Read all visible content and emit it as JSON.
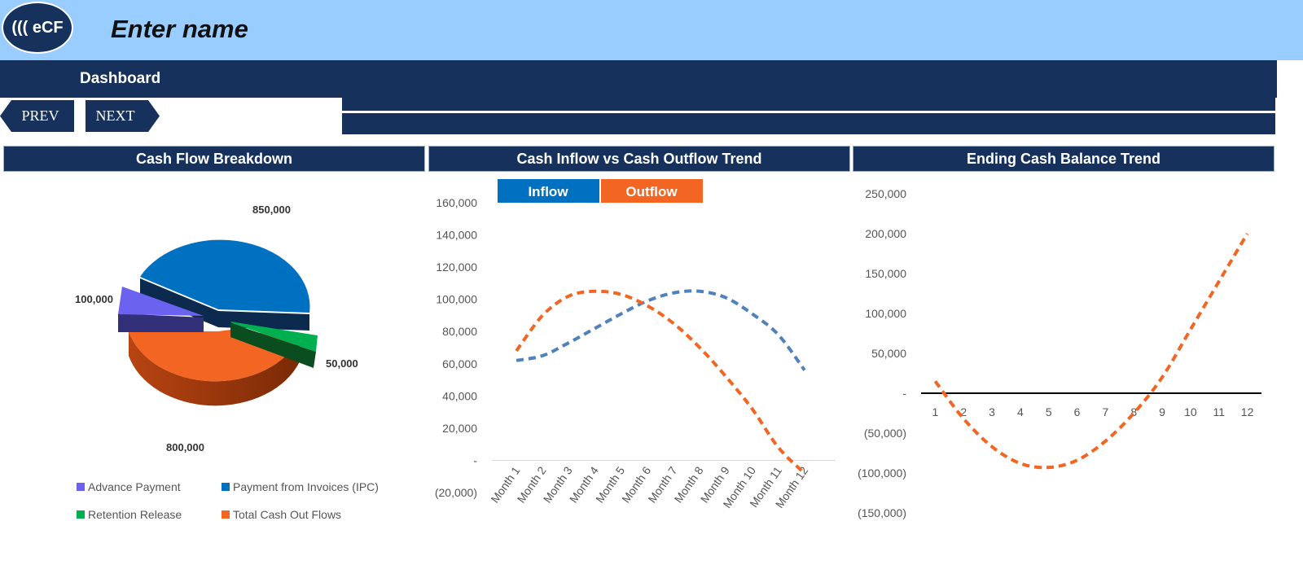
{
  "header": {
    "logo_text": "((( eCF",
    "app_name": "Enter name"
  },
  "nav": {
    "title": "Dashboard",
    "prev_label": "PREV",
    "next_label": "NEXT"
  },
  "colors": {
    "navy": "#16325c",
    "sky": "#99ccff",
    "advance": "#6b63f0",
    "invoices": "#0070c0",
    "retention": "#00b050",
    "outflows": "#f26522",
    "inflow_line": "#4f81bd"
  },
  "chart_data": [
    {
      "type": "pie",
      "title": "Cash Flow Breakdown",
      "slices": [
        {
          "name": "Advance Payment",
          "value": 100000,
          "label": "100,000"
        },
        {
          "name": "Payment from Invoices (IPC)",
          "value": 850000,
          "label": "850,000"
        },
        {
          "name": "Retention Release",
          "value": 50000,
          "label": "50,000"
        },
        {
          "name": "Total Cash Out Flows",
          "value": 800000,
          "label": "800,000"
        }
      ],
      "legend_position": "bottom"
    },
    {
      "type": "line",
      "title": "Cash Inflow vs Cash Outflow Trend",
      "categories": [
        "Month 1",
        "Month 2",
        "Month 3",
        "Month 4",
        "Month 5",
        "Month 6",
        "Month 7",
        "Month 8",
        "Month 9",
        "Month 10",
        "Month 11",
        "Month 12"
      ],
      "series": [
        {
          "name": "Inflow",
          "values": [
            62000,
            65000,
            73000,
            82000,
            91000,
            99000,
            104000,
            105000,
            101000,
            91000,
            78000,
            56000
          ]
        },
        {
          "name": "Outflow",
          "values": [
            68000,
            90000,
            102000,
            105000,
            103000,
            96000,
            85000,
            70000,
            52000,
            32000,
            8000,
            -8000
          ]
        }
      ],
      "ylim": [
        -20000,
        160000
      ],
      "yticks": [
        "(20,000)",
        "-",
        "20,000",
        "40,000",
        "60,000",
        "80,000",
        "100,000",
        "120,000",
        "140,000",
        "160,000"
      ],
      "legend_position": "top"
    },
    {
      "type": "line",
      "title": "Ending Cash Balance Trend",
      "categories": [
        "1",
        "2",
        "3",
        "4",
        "5",
        "6",
        "7",
        "8",
        "9",
        "10",
        "11",
        "12"
      ],
      "series": [
        {
          "values": [
            15000,
            -32000,
            -67000,
            -88000,
            -93000,
            -84000,
            -60000,
            -25000,
            20000,
            80000,
            140000,
            200000
          ]
        }
      ],
      "ylim": [
        -150000,
        250000
      ],
      "yticks": [
        "(150,000)",
        "(100,000)",
        "(50,000)",
        "-",
        "50,000",
        "100,000",
        "150,000",
        "200,000",
        "250,000"
      ]
    }
  ]
}
